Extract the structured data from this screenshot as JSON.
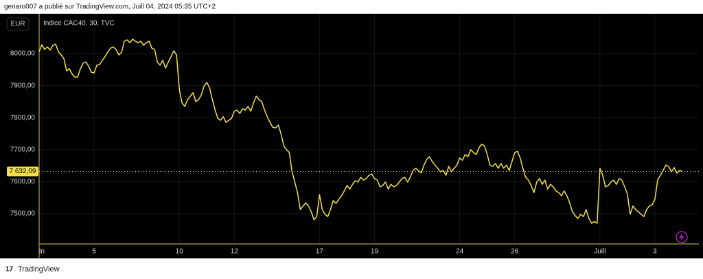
{
  "header": {
    "text": "genaro007 a publié sur TradingView.com, Juill 04, 2024 05:35 UTC+2"
  },
  "footer": {
    "brand": "TradingView"
  },
  "chart_data": {
    "type": "line",
    "title": "Indice CAC40, 30, TVC",
    "currency": "EUR",
    "grid": true,
    "ylim": [
      7405.6,
      8124.6
    ],
    "yticks": [
      {
        "value": 7500,
        "label": "7500,00"
      },
      {
        "value": 7600,
        "label": "7600,00"
      },
      {
        "value": 7700,
        "label": "7700,00"
      },
      {
        "value": 7800,
        "label": "7800,00"
      },
      {
        "value": 7900,
        "label": "7900,00"
      },
      {
        "value": 8000,
        "label": "8000,00"
      }
    ],
    "xlim": [
      0,
      240
    ],
    "xticks": [
      {
        "value": 1,
        "label": "in"
      },
      {
        "value": 20,
        "label": "5"
      },
      {
        "value": 51,
        "label": "10"
      },
      {
        "value": 71,
        "label": "12"
      },
      {
        "value": 102,
        "label": "17"
      },
      {
        "value": 122,
        "label": "19"
      },
      {
        "value": 153,
        "label": "24"
      },
      {
        "value": 173,
        "label": "26"
      },
      {
        "value": 204,
        "label": "Juill"
      },
      {
        "value": 224,
        "label": "3"
      }
    ],
    "last_price": {
      "value": 7632.09,
      "label": "7 632,09"
    },
    "series": [
      {
        "color": "#f2df4a",
        "values": [
          8006,
          8028,
          8013,
          8021,
          8011,
          8026,
          8030,
          8006,
          7996,
          7985,
          7946,
          7953,
          7936,
          7927,
          7927,
          7953,
          7970,
          7974,
          7961,
          7942,
          7940,
          7964,
          7966,
          7979,
          7991,
          8006,
          8017,
          8021,
          8013,
          7996,
          8004,
          8039,
          8043,
          8034,
          8045,
          8039,
          8034,
          8039,
          8026,
          8034,
          8039,
          8017,
          8013,
          7974,
          7964,
          7979,
          7955,
          7974,
          7991,
          8009,
          7996,
          7888,
          7846,
          7835,
          7856,
          7867,
          7878,
          7850,
          7856,
          7871,
          7899,
          7910,
          7893,
          7856,
          7824,
          7798,
          7792,
          7803,
          7785,
          7792,
          7798,
          7820,
          7824,
          7813,
          7828,
          7824,
          7835,
          7820,
          7846,
          7867,
          7856,
          7850,
          7824,
          7803,
          7785,
          7770,
          7768,
          7777,
          7749,
          7712,
          7700,
          7691,
          7631,
          7599,
          7566,
          7513,
          7524,
          7534,
          7524,
          7506,
          7481,
          7491,
          7560,
          7513,
          7498,
          7491,
          7513,
          7541,
          7532,
          7545,
          7556,
          7571,
          7588,
          7577,
          7592,
          7603,
          7599,
          7614,
          7605,
          7610,
          7620,
          7624,
          7610,
          7605,
          7584,
          7588,
          7599,
          7577,
          7592,
          7584,
          7588,
          7599,
          7610,
          7614,
          7599,
          7614,
          7635,
          7642,
          7635,
          7627,
          7652,
          7670,
          7678,
          7663,
          7652,
          7642,
          7631,
          7635,
          7620,
          7648,
          7631,
          7642,
          7652,
          7674,
          7667,
          7685,
          7678,
          7700,
          7691,
          7685,
          7706,
          7717,
          7712,
          7685,
          7652,
          7648,
          7657,
          7642,
          7657,
          7642,
          7652,
          7635,
          7663,
          7691,
          7695,
          7674,
          7642,
          7614,
          7605,
          7588,
          7566,
          7599,
          7610,
          7592,
          7605,
          7577,
          7592,
          7584,
          7571,
          7566,
          7556,
          7571,
          7556,
          7534,
          7506,
          7494,
          7485,
          7498,
          7491,
          7513,
          7485,
          7470,
          7476,
          7470,
          7642,
          7620,
          7584,
          7588,
          7599,
          7605,
          7592,
          7610,
          7605,
          7584,
          7562,
          7498,
          7524,
          7513,
          7506,
          7498,
          7491,
          7513,
          7524,
          7528,
          7545,
          7605,
          7620,
          7635,
          7652,
          7648,
          7631,
          7644,
          7627,
          7635,
          7632
        ]
      }
    ]
  }
}
